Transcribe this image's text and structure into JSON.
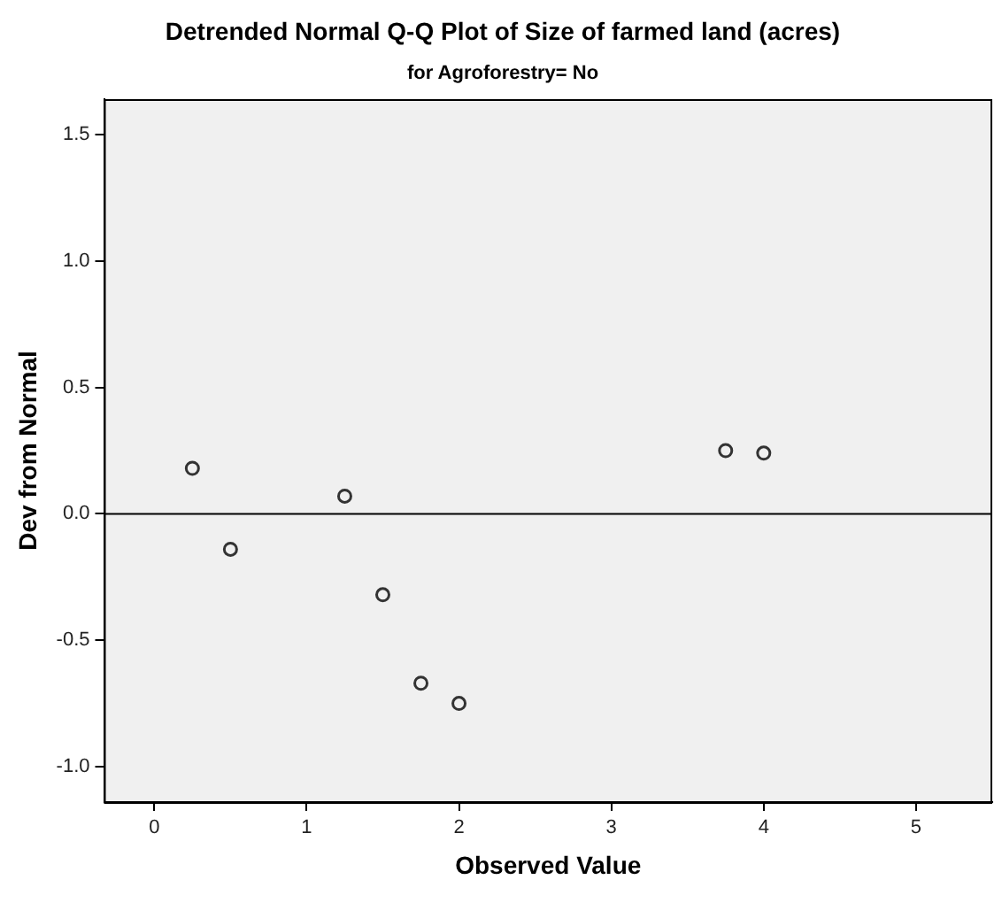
{
  "chart_data": {
    "type": "scatter",
    "title": "Detrended Normal Q-Q Plot of Size of farmed land (acres)",
    "subtitle": "for Agroforestry= No",
    "xlabel": "Observed Value",
    "ylabel": "Dev from Normal",
    "x": [
      0.25,
      0.5,
      1.25,
      1.5,
      1.75,
      2.0,
      3.75,
      4.0
    ],
    "series": [
      {
        "color": "#333333",
        "values": [
          0.18,
          -0.14,
          0.07,
          -0.32,
          -0.67,
          -0.75,
          0.25,
          0.24
        ]
      }
    ],
    "xlim": [
      -0.33,
      5.5
    ],
    "xticks": [
      0,
      1,
      2,
      3,
      4,
      5
    ],
    "ylim": [
      -1.14,
      1.64
    ],
    "yticks": [
      {
        "value": -1.0,
        "label": "-1.0"
      },
      {
        "value": -0.5,
        "label": "-0.5"
      },
      {
        "value": 0.0,
        "label": "0.0"
      },
      {
        "value": 0.5,
        "label": "0.5"
      },
      {
        "value": 1.0,
        "label": "1.0"
      },
      {
        "value": 1.5,
        "label": "1.5"
      }
    ],
    "ref_lines": [
      {
        "axis": "y",
        "value": 0,
        "color": "#000000"
      }
    ],
    "grid": false,
    "legend": false,
    "marker": "circle"
  }
}
